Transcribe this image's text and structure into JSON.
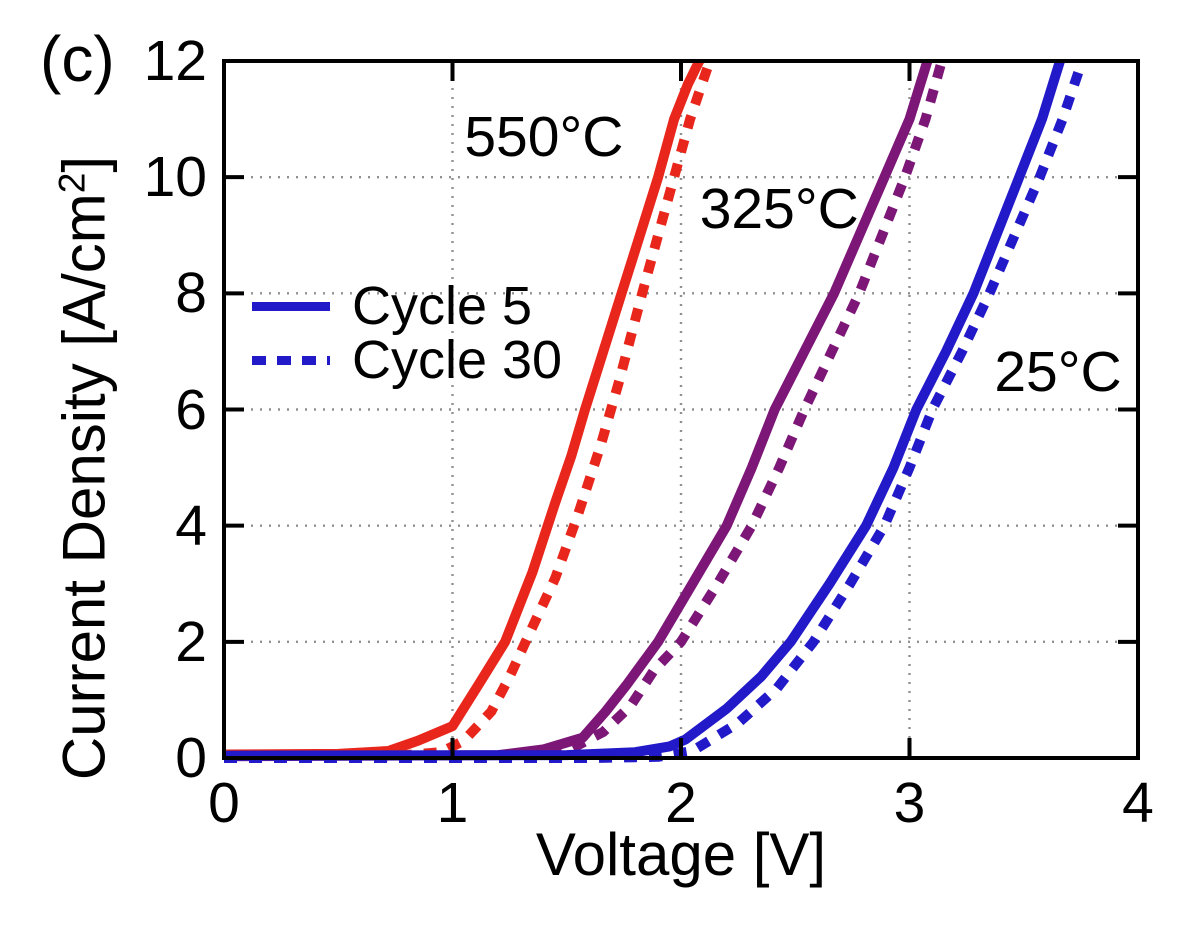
{
  "panel_label": "(c)",
  "colors": {
    "red_550c": "#e8261b",
    "purple_325c": "#7c1677",
    "blue_25c": "#2219c9",
    "axis": "#000000",
    "grid": "#909090",
    "background": "#ffffff"
  },
  "chart_data": {
    "type": "line",
    "title": "",
    "xlabel": "Voltage [V]",
    "ylabel": "Current Density [A/cm²]",
    "ylabel_parts": {
      "main": "Current Density [A/cm",
      "sup": "2",
      "close": "]"
    },
    "xlim": [
      0,
      4
    ],
    "ylim": [
      0,
      12
    ],
    "x_ticks": [
      "0",
      "1",
      "2",
      "3",
      "4"
    ],
    "x_tick_values": [
      0,
      1,
      2,
      3,
      4
    ],
    "y_ticks": [
      "0",
      "2",
      "4",
      "6",
      "8",
      "10",
      "12"
    ],
    "y_tick_values": [
      0,
      2,
      4,
      6,
      8,
      10,
      12
    ],
    "grid": {
      "style": "dotted",
      "x_lines": [
        1,
        2,
        3
      ],
      "y_lines": [
        2,
        4,
        6,
        8,
        10
      ]
    },
    "legend": {
      "position": "upper-left",
      "color": "#2219c9",
      "entries": [
        {
          "label": "Cycle 5",
          "style": "solid"
        },
        {
          "label": "Cycle 30",
          "style": "dashed"
        }
      ]
    },
    "annotations": [
      {
        "text": "550°C",
        "x": 1.4,
        "y": 10.7
      },
      {
        "text": "325°C",
        "x": 2.43,
        "y": 9.45
      },
      {
        "text": "25°C",
        "x": 3.65,
        "y": 6.65
      }
    ],
    "series": [
      {
        "name": "550°C Cycle 5",
        "temperature": "550°C",
        "cycle": "Cycle 5",
        "color": "#e8261b",
        "dash": false,
        "points": [
          [
            0,
            0.06
          ],
          [
            0.5,
            0.07
          ],
          [
            0.72,
            0.12
          ],
          [
            0.85,
            0.3
          ],
          [
            1.0,
            0.55
          ],
          [
            1.12,
            1.3
          ],
          [
            1.23,
            2.0
          ],
          [
            1.35,
            3.2
          ],
          [
            1.45,
            4.4
          ],
          [
            1.52,
            5.2
          ],
          [
            1.58,
            6.0
          ],
          [
            1.66,
            7.0
          ],
          [
            1.74,
            8.0
          ],
          [
            1.82,
            9.0
          ],
          [
            1.9,
            10.0
          ],
          [
            1.97,
            11.0
          ],
          [
            2.03,
            11.6
          ],
          [
            2.13,
            12.4
          ]
        ]
      },
      {
        "name": "550°C Cycle 30",
        "temperature": "550°C",
        "cycle": "Cycle 30",
        "color": "#e8261b",
        "dash": true,
        "points": [
          [
            0,
            0.0
          ],
          [
            0.7,
            0.02
          ],
          [
            0.95,
            0.1
          ],
          [
            1.05,
            0.3
          ],
          [
            1.17,
            0.8
          ],
          [
            1.25,
            1.4
          ],
          [
            1.32,
            2.0
          ],
          [
            1.45,
            3.1
          ],
          [
            1.55,
            4.2
          ],
          [
            1.65,
            5.4
          ],
          [
            1.73,
            6.5
          ],
          [
            1.83,
            8.0
          ],
          [
            1.9,
            9.0
          ],
          [
            1.97,
            10.0
          ],
          [
            2.04,
            11.0
          ],
          [
            2.16,
            12.4
          ]
        ]
      },
      {
        "name": "325°C Cycle 5",
        "temperature": "325°C",
        "cycle": "Cycle 5",
        "color": "#7c1677",
        "dash": false,
        "points": [
          [
            0,
            0.03
          ],
          [
            1.2,
            0.05
          ],
          [
            1.4,
            0.15
          ],
          [
            1.57,
            0.35
          ],
          [
            1.67,
            0.8
          ],
          [
            1.76,
            1.25
          ],
          [
            1.9,
            2.0
          ],
          [
            2.05,
            3.0
          ],
          [
            2.2,
            4.0
          ],
          [
            2.31,
            5.0
          ],
          [
            2.41,
            6.0
          ],
          [
            2.54,
            7.0
          ],
          [
            2.67,
            8.0
          ],
          [
            2.78,
            9.0
          ],
          [
            2.89,
            10.0
          ],
          [
            3.0,
            11.0
          ],
          [
            3.11,
            12.4
          ]
        ]
      },
      {
        "name": "325°C Cycle 30",
        "temperature": "325°C",
        "cycle": "Cycle 30",
        "color": "#7c1677",
        "dash": true,
        "points": [
          [
            0,
            0.0
          ],
          [
            1.3,
            0.02
          ],
          [
            1.5,
            0.12
          ],
          [
            1.66,
            0.45
          ],
          [
            1.78,
            0.9
          ],
          [
            1.88,
            1.5
          ],
          [
            2.0,
            2.0
          ],
          [
            2.16,
            3.0
          ],
          [
            2.31,
            4.0
          ],
          [
            2.43,
            5.0
          ],
          [
            2.54,
            6.0
          ],
          [
            2.66,
            7.0
          ],
          [
            2.78,
            8.0
          ],
          [
            2.88,
            9.0
          ],
          [
            2.98,
            10.0
          ],
          [
            3.07,
            11.0
          ],
          [
            3.17,
            12.4
          ]
        ]
      },
      {
        "name": "25°C Cycle 5",
        "temperature": "25°C",
        "cycle": "Cycle 5",
        "color": "#2219c9",
        "dash": false,
        "points": [
          [
            0,
            0.04
          ],
          [
            1.5,
            0.05
          ],
          [
            1.8,
            0.1
          ],
          [
            1.95,
            0.2
          ],
          [
            2.02,
            0.32
          ],
          [
            2.2,
            0.85
          ],
          [
            2.35,
            1.4
          ],
          [
            2.48,
            2.0
          ],
          [
            2.65,
            3.0
          ],
          [
            2.81,
            4.0
          ],
          [
            2.93,
            5.0
          ],
          [
            3.03,
            6.0
          ],
          [
            3.16,
            7.0
          ],
          [
            3.28,
            8.0
          ],
          [
            3.38,
            9.0
          ],
          [
            3.48,
            10.0
          ],
          [
            3.58,
            11.0
          ],
          [
            3.69,
            12.4
          ]
        ]
      },
      {
        "name": "25°C Cycle 30",
        "temperature": "25°C",
        "cycle": "Cycle 30",
        "color": "#2219c9",
        "dash": true,
        "points": [
          [
            0,
            0.0
          ],
          [
            1.6,
            0.0
          ],
          [
            1.9,
            0.02
          ],
          [
            2.05,
            0.12
          ],
          [
            2.25,
            0.6
          ],
          [
            2.42,
            1.2
          ],
          [
            2.58,
            2.0
          ],
          [
            2.74,
            3.0
          ],
          [
            2.89,
            4.0
          ],
          [
            3.0,
            5.0
          ],
          [
            3.1,
            6.0
          ],
          [
            3.23,
            7.0
          ],
          [
            3.35,
            8.0
          ],
          [
            3.46,
            9.0
          ],
          [
            3.57,
            10.0
          ],
          [
            3.67,
            11.0
          ],
          [
            3.79,
            12.4
          ]
        ]
      }
    ]
  }
}
